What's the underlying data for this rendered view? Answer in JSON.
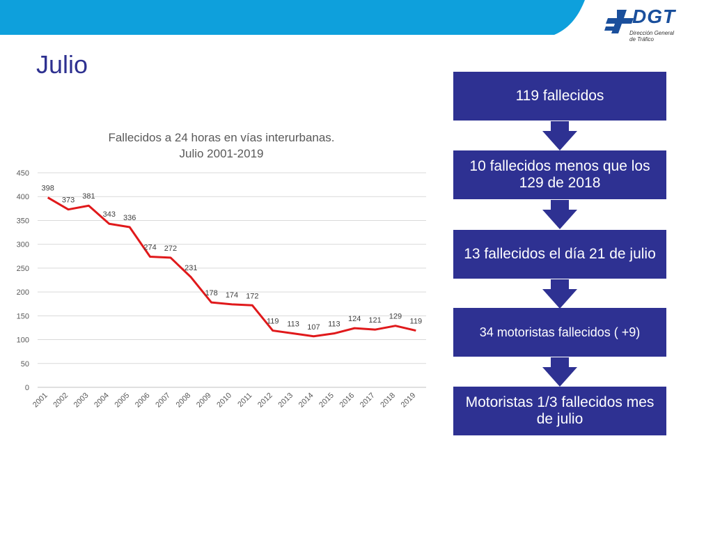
{
  "page": {
    "title": "Julio"
  },
  "logo": {
    "text": "DGT",
    "subtitle_line1": "Dirección General",
    "subtitle_line2": "de Tráfico"
  },
  "colors": {
    "banner": "#0ea0dc",
    "accent": "#2e3192",
    "line": "#e0191b"
  },
  "chart_data": {
    "type": "line",
    "title": "Fallecidos a 24 horas en vías interurbanas.",
    "subtitle": "Julio 2001-2019",
    "categories": [
      "2001",
      "2002",
      "2003",
      "2004",
      "2005",
      "2006",
      "2007",
      "2008",
      "2009",
      "2010",
      "2011",
      "2012",
      "2013",
      "2014",
      "2015",
      "2016",
      "2017",
      "2018",
      "2019"
    ],
    "series": [
      {
        "values": [
          398,
          373,
          381,
          343,
          336,
          274,
          272,
          231,
          178,
          174,
          172,
          119,
          113,
          107,
          113,
          124,
          121,
          129,
          119
        ]
      }
    ],
    "ylim": [
      0,
      450
    ],
    "yticks": [
      0,
      50,
      100,
      150,
      200,
      250,
      300,
      350,
      400,
      450
    ],
    "grid": true,
    "legend": "none"
  },
  "flow": [
    "119 fallecidos",
    "10 fallecidos menos que los 129 de 2018",
    "13 fallecidos el día 21 de julio",
    "34 motoristas fallecidos ( +9)",
    "Motoristas 1/3 fallecidos mes de julio"
  ]
}
